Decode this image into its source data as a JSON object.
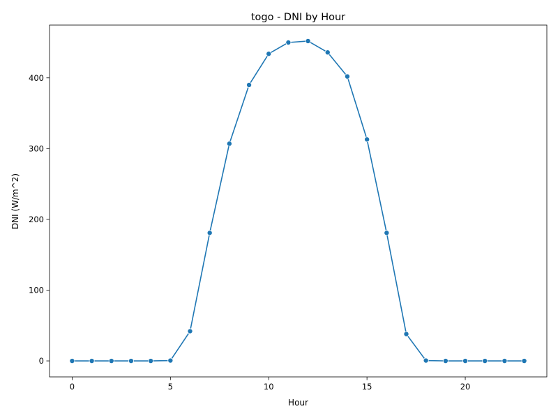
{
  "chart_data": {
    "type": "line",
    "title": "togo - DNI by Hour",
    "xlabel": "Hour",
    "ylabel": "DNI (W/m^2)",
    "x": [
      0,
      1,
      2,
      3,
      4,
      5,
      6,
      7,
      8,
      9,
      10,
      11,
      12,
      13,
      14,
      15,
      16,
      17,
      18,
      19,
      20,
      21,
      22,
      23
    ],
    "series": [
      {
        "values": [
          0,
          0,
          0,
          0,
          0,
          0.5,
          42,
          181,
          307,
          390,
          434,
          450,
          452,
          436,
          402,
          313,
          181,
          38,
          0.5,
          0,
          0,
          0,
          0,
          0
        ]
      }
    ],
    "xlim": [
      -1.15,
      24.15
    ],
    "ylim": [
      -22.6,
      474.6
    ],
    "xticks": [
      0,
      5,
      10,
      15,
      20
    ],
    "yticks": [
      0,
      100,
      200,
      300,
      400
    ],
    "grid": false,
    "legend": "none",
    "line_color": "#1f77b4",
    "marker": "circle"
  }
}
